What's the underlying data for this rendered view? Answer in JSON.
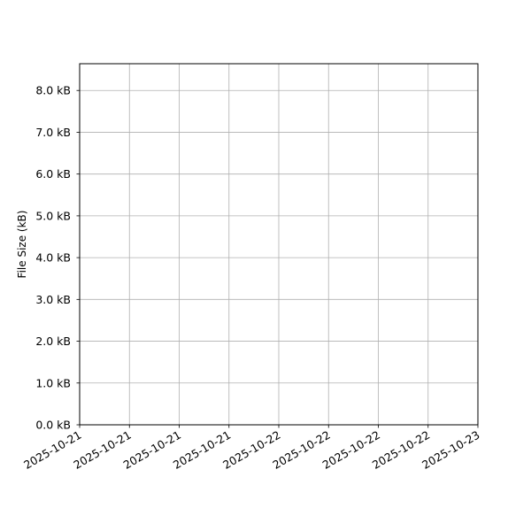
{
  "chart_data": {
    "type": "line",
    "title": "",
    "xlabel": "",
    "ylabel": "File Size (kB)",
    "ylim": [
      0,
      8.64
    ],
    "xlim": [
      "2025-10-21",
      "2025-10-23"
    ],
    "grid": true,
    "x_tick_labels": [
      "2025-10-21",
      "2025-10-21",
      "2025-10-21",
      "2025-10-21",
      "2025-10-22",
      "2025-10-22",
      "2025-10-22",
      "2025-10-22",
      "2025-10-23"
    ],
    "y_ticks": [
      0,
      1,
      2,
      3,
      4,
      5,
      6,
      7,
      8
    ],
    "y_tick_labels": [
      "0.0 kB",
      "1.0 kB",
      "2.0 kB",
      "3.0 kB",
      "4.0 kB",
      "5.0 kB",
      "6.0 kB",
      "7.0 kB",
      "8.0 kB"
    ],
    "series": [],
    "colors": {
      "grid": "#b0b0b0",
      "axes": "#000000"
    }
  }
}
